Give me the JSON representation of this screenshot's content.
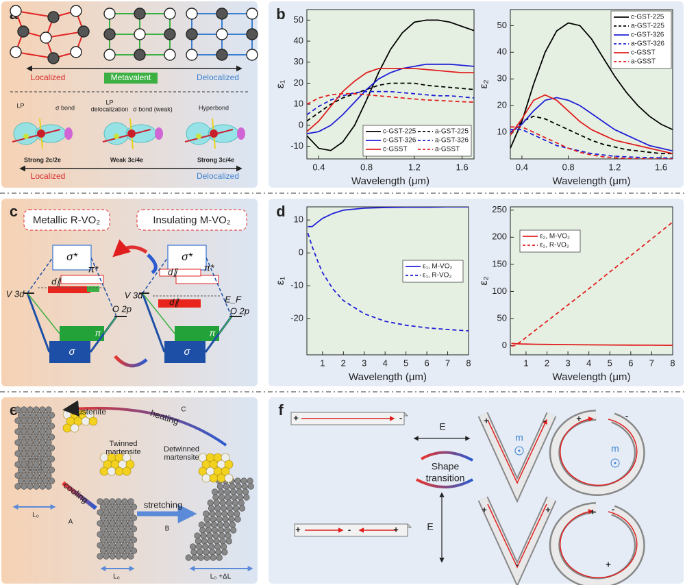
{
  "panel_labels": [
    "a",
    "b",
    "c",
    "d",
    "e",
    "f"
  ],
  "panel_a": {
    "scale": [
      "Localized",
      "Metavalent",
      "Delocalized"
    ],
    "bond_labels": [
      "LP",
      "σ bond",
      "LP",
      "delocalization",
      "σ bond (weak)",
      "Hyperbond"
    ],
    "bond_types": [
      "Strong 2c/2e",
      "Weak 3c/4e",
      "Strong 3c/4e"
    ],
    "bottom_scale": [
      "Localized",
      "Delocalized"
    ]
  },
  "panel_c": {
    "phases": [
      "Metallic R-VO₂",
      "Insulating M-VO₂"
    ],
    "levels": [
      "σ*",
      "π*",
      "d∥",
      "V 3d",
      "O 2p",
      "π",
      "σ",
      "σ*",
      "π*",
      "d∥",
      "d∥",
      "V 3d",
      "O 2p",
      "π",
      "σ",
      "E_F"
    ]
  },
  "panel_e": {
    "labels": [
      "Austenite",
      "heating",
      "C",
      "Twinned",
      "martensite",
      "Detwinned",
      "martensite",
      "cooling",
      "A",
      "stretching",
      "B",
      "L₀",
      "L₀",
      "L₀ +ΔL"
    ]
  },
  "panel_f": {
    "labels": [
      "E",
      "E",
      "m",
      "m",
      "Shape",
      "transition"
    ],
    "signs": [
      "+",
      "-",
      "+",
      "-",
      "+",
      "+",
      "-",
      "+",
      "+",
      "+",
      "-",
      "+",
      "-",
      "+",
      "-"
    ]
  },
  "chart_data": [
    {
      "type": "line",
      "xlabel": "Wavelength (μm)",
      "ylabel": "ε₁",
      "x": [
        0.3,
        0.4,
        0.5,
        0.6,
        0.7,
        0.8,
        0.9,
        1.0,
        1.1,
        1.2,
        1.3,
        1.4,
        1.5,
        1.6,
        1.7
      ],
      "xlim": [
        0.3,
        1.7
      ],
      "xticks": [
        0.4,
        0.8,
        1.2,
        1.6
      ],
      "ylim": [
        -16,
        55
      ],
      "yticks": [
        -10,
        0,
        10,
        20,
        30,
        40,
        50
      ],
      "legend": "lower right",
      "series": [
        {
          "name": "c-GST-225",
          "color": "#000000",
          "style": "solid",
          "values": [
            -5,
            -11,
            -12,
            -8,
            0,
            12,
            25,
            36,
            44,
            49,
            50,
            50,
            49,
            47,
            45
          ]
        },
        {
          "name": "a-GST-225",
          "color": "#000000",
          "style": "dashed",
          "values": [
            2,
            6,
            10,
            13,
            15,
            17,
            19,
            20,
            20,
            20,
            19,
            18.5,
            18,
            17.5,
            17
          ]
        },
        {
          "name": "c-GST-326",
          "color": "#1f1fd6",
          "style": "solid",
          "values": [
            -4,
            -3,
            0,
            5,
            11,
            17,
            22,
            25,
            27,
            28,
            29,
            29,
            29,
            28.5,
            28
          ]
        },
        {
          "name": "a-GST-326",
          "color": "#1f1fd6",
          "style": "dashed",
          "values": [
            5,
            9,
            12,
            14,
            15.5,
            16,
            16,
            16,
            15.5,
            15,
            14.5,
            14,
            14,
            13.5,
            13
          ]
        },
        {
          "name": "c-GSST",
          "color": "#e01e1e",
          "style": "solid",
          "values": [
            -3,
            2,
            9,
            16,
            21,
            25,
            27,
            27,
            27,
            27,
            26.5,
            26,
            25.5,
            25,
            25
          ]
        },
        {
          "name": "a-GSST",
          "color": "#e01e1e",
          "style": "dashed",
          "values": [
            10,
            13,
            14.5,
            15,
            15,
            14.5,
            14,
            13.5,
            13,
            12.5,
            12,
            11.8,
            11.5,
            11.2,
            11
          ]
        }
      ]
    },
    {
      "type": "line",
      "xlabel": "Wavelength (μm)",
      "ylabel": "ε₂",
      "x": [
        0.3,
        0.4,
        0.5,
        0.6,
        0.7,
        0.8,
        0.9,
        1.0,
        1.1,
        1.2,
        1.3,
        1.4,
        1.5,
        1.6,
        1.7
      ],
      "xlim": [
        0.3,
        1.7
      ],
      "xticks": [
        0.4,
        0.8,
        1.2,
        1.6
      ],
      "ylim": [
        0,
        56
      ],
      "yticks": [
        10,
        20,
        30,
        40,
        50
      ],
      "legend": "upper right",
      "series": [
        {
          "name": "c-GST-225",
          "color": "#000000",
          "style": "solid",
          "values": [
            4,
            14,
            28,
            40,
            48,
            51,
            50,
            45,
            38,
            31,
            25,
            20,
            16,
            13,
            11
          ]
        },
        {
          "name": "a-GST-225",
          "color": "#000000",
          "style": "dashed",
          "values": [
            9,
            14,
            16,
            15,
            13,
            11,
            9,
            7,
            5.5,
            4.5,
            3.5,
            3,
            2.5,
            2,
            2
          ]
        },
        {
          "name": "c-GST-326",
          "color": "#1f1fd6",
          "style": "solid",
          "values": [
            10,
            13,
            18,
            22,
            23,
            22,
            20,
            17,
            14,
            11,
            9,
            7,
            5,
            4,
            3
          ]
        },
        {
          "name": "a-GST-326",
          "color": "#1f1fd6",
          "style": "dashed",
          "values": [
            11,
            11,
            9,
            7,
            5,
            4,
            3,
            2,
            1.5,
            1,
            0.8,
            0.6,
            0.5,
            0.4,
            0.3
          ]
        },
        {
          "name": "c-GSST",
          "color": "#e01e1e",
          "style": "solid",
          "values": [
            9,
            15,
            22,
            24,
            22,
            18,
            14,
            11,
            9,
            7,
            6,
            5,
            4,
            3,
            2
          ]
        },
        {
          "name": "a-GSST",
          "color": "#e01e1e",
          "style": "dashed",
          "values": [
            12,
            12,
            10,
            8,
            6,
            4,
            2.5,
            1.5,
            0.8,
            0.4,
            0.2,
            0.1,
            0,
            0,
            0
          ]
        }
      ]
    },
    {
      "type": "line",
      "xlabel": "Wavelength (μm)",
      "ylabel": "ε₁",
      "x": [
        0.3,
        0.5,
        0.8,
        1,
        1.5,
        2,
        3,
        4,
        5,
        6,
        7,
        8
      ],
      "xlim": [
        0.25,
        8
      ],
      "xticks": [
        1,
        2,
        3,
        4,
        5,
        6,
        7,
        8
      ],
      "ylim": [
        -31,
        14
      ],
      "yticks": [
        -20,
        -10,
        0,
        10
      ],
      "legend": "center right",
      "series": [
        {
          "name": "ε₁, M-VO₂",
          "color": "#1f1fd6",
          "style": "solid",
          "values": [
            8,
            8,
            9.5,
            10.5,
            12,
            13,
            13.6,
            13.8,
            13.9,
            13.9,
            14,
            14
          ]
        },
        {
          "name": "ε₁, R-VO₂",
          "color": "#1f1fd6",
          "style": "dashed",
          "values": [
            6,
            2,
            -3,
            -6,
            -11,
            -14.5,
            -18.5,
            -20.8,
            -22,
            -22.8,
            -23.3,
            -23.7
          ]
        }
      ]
    },
    {
      "type": "line",
      "xlabel": "Wavelength (μm)",
      "ylabel": "ε₂",
      "x": [
        0.3,
        0.5,
        0.8,
        1,
        1.5,
        2,
        3,
        4,
        5,
        6,
        7,
        8
      ],
      "xlim": [
        0.25,
        8
      ],
      "xticks": [
        1,
        2,
        3,
        4,
        5,
        6,
        7,
        8
      ],
      "ylim": [
        -17,
        256
      ],
      "yticks": [
        0,
        50,
        100,
        150,
        200,
        250
      ],
      "legend": "upper left",
      "series": [
        {
          "name": "ε₂, M-VO₂",
          "color": "#e01e1e",
          "style": "solid",
          "values": [
            4,
            3.5,
            3,
            2.8,
            2.5,
            2.2,
            1.8,
            1.5,
            1.2,
            1,
            0.8,
            0.6
          ]
        },
        {
          "name": "ε₂, R-VO₂",
          "color": "#e01e1e",
          "style": "dashed",
          "values": [
            -1,
            0.5,
            9,
            15,
            30,
            45,
            75,
            105,
            136,
            166,
            197,
            228
          ]
        }
      ]
    }
  ]
}
